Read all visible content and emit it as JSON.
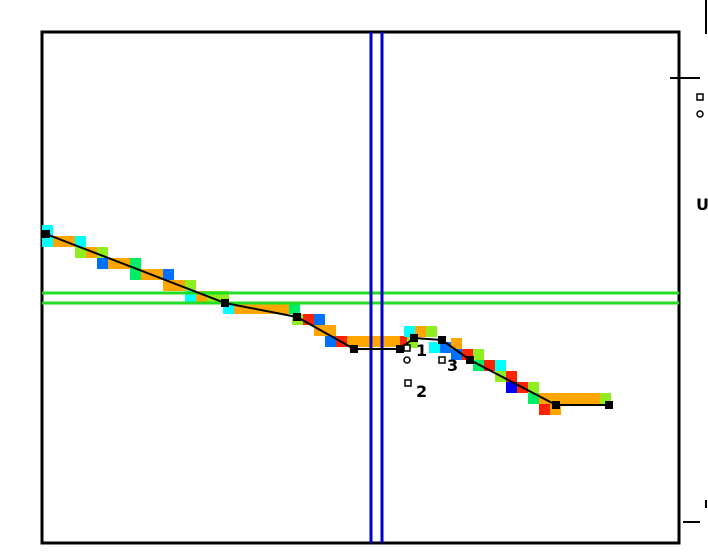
{
  "canvas": {
    "background": "#ffffff",
    "frame_color": "#000000"
  },
  "cursor": {
    "vertical_color": "#0000cc",
    "horizontal_color": "#22dd22"
  },
  "trace": {
    "line_color": "#000000",
    "point_count": 10
  },
  "cell_palette": [
    "#00ffff",
    "#ffa500",
    "#90ee20",
    "#ff2200",
    "#0070ff",
    "#00ee66",
    "#0000ff"
  ],
  "markers": [
    {
      "label": "1"
    },
    {
      "label": "2"
    },
    {
      "label": "3"
    }
  ],
  "right_panel": {
    "axis_letter": "U"
  }
}
